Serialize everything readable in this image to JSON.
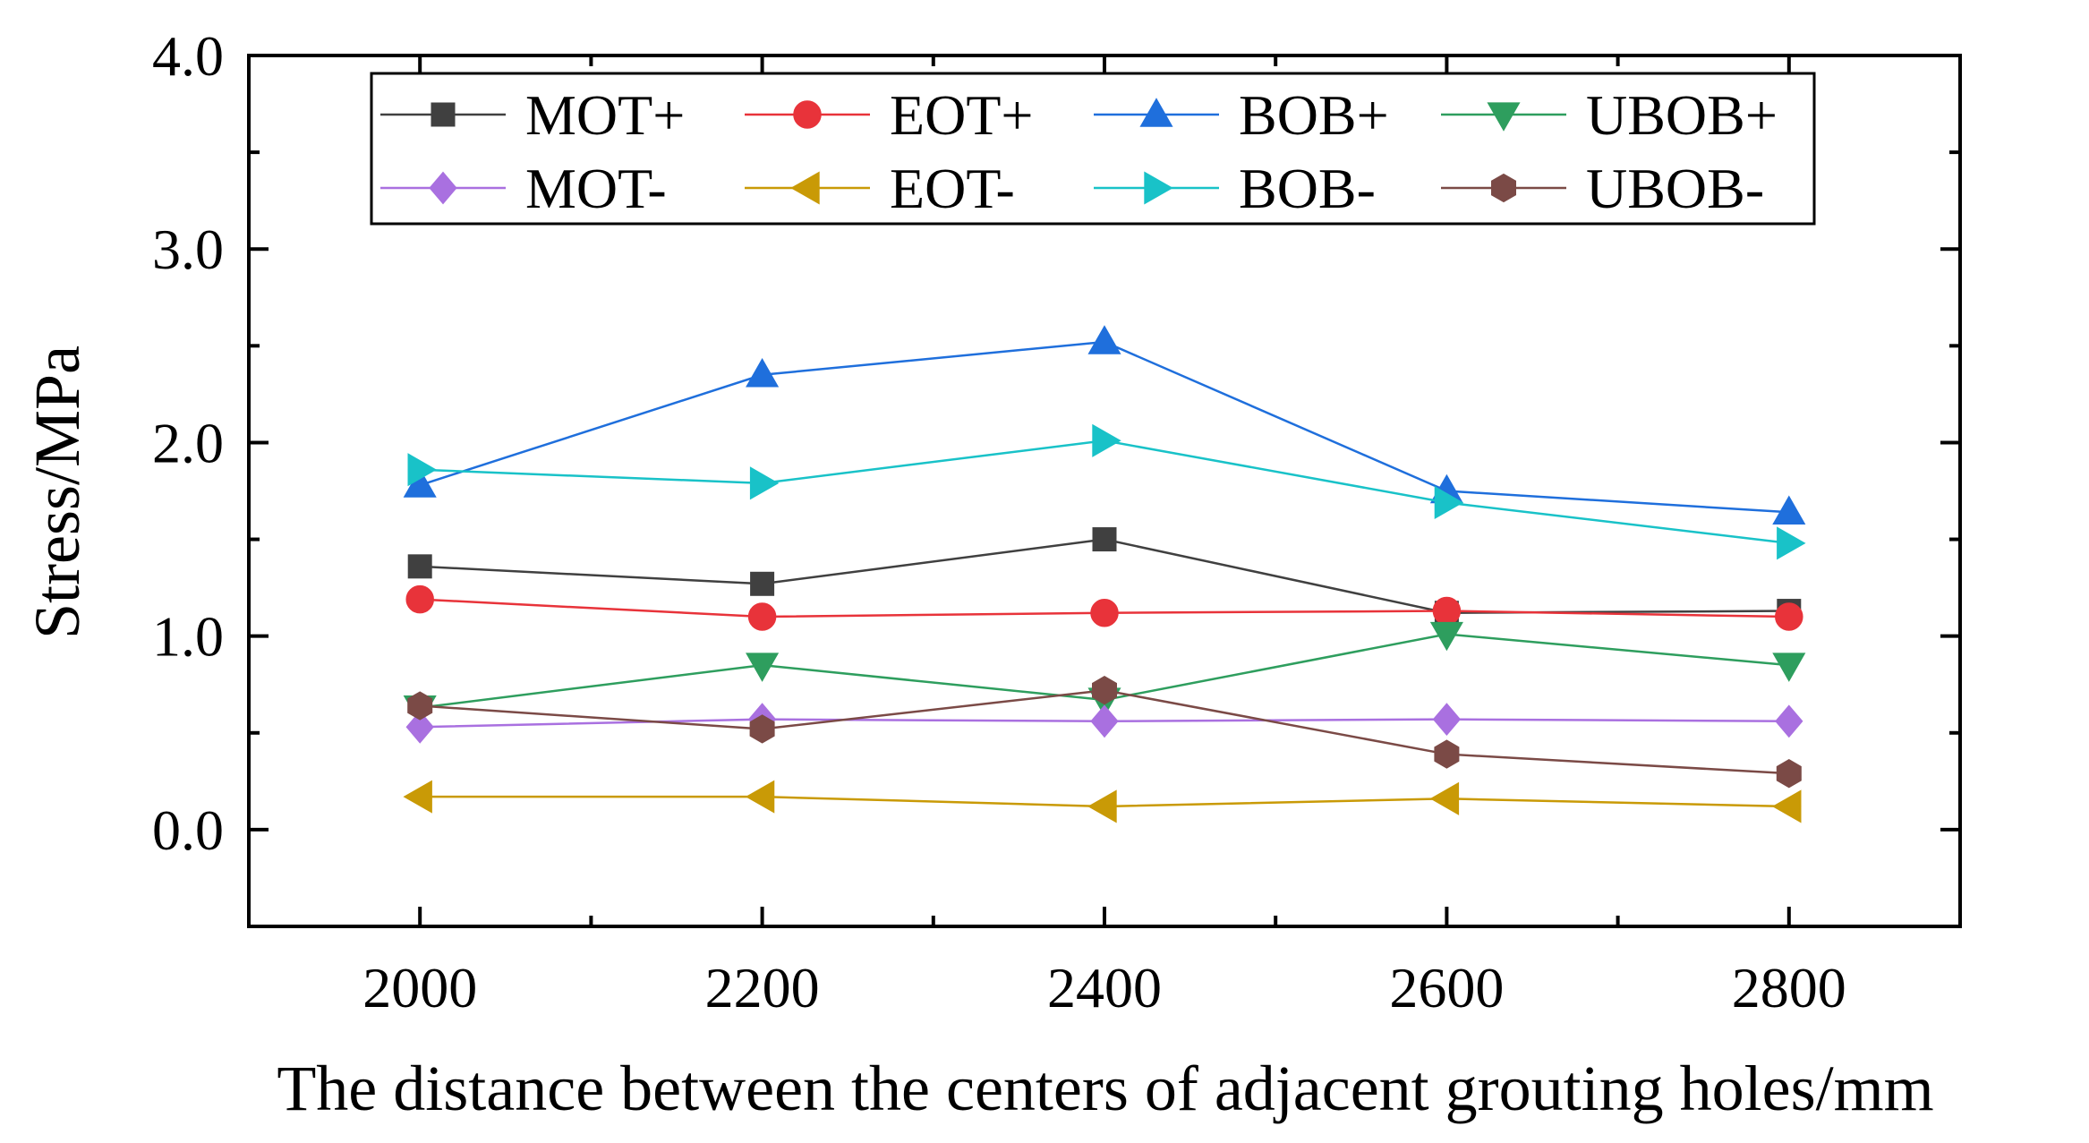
{
  "chart_data": {
    "type": "line",
    "title": "",
    "xlabel": "The distance between the centers of adjacent grouting holes/mm",
    "ylabel": "Stress/MPa",
    "x": [
      2000,
      2200,
      2400,
      2600,
      2800
    ],
    "x_tick_labels": [
      "2000",
      "2200",
      "2400",
      "2600",
      "2800"
    ],
    "xlim": [
      1900,
      2900
    ],
    "ylim": [
      -0.5,
      4.0
    ],
    "y_ticks": [
      0.0,
      1.0,
      2.0,
      3.0,
      4.0
    ],
    "y_tick_labels": [
      "0.0",
      "1.0",
      "2.0",
      "3.0",
      "4.0"
    ],
    "grid": false,
    "legend_position": "top",
    "series": [
      {
        "name": "MOT+",
        "color": "#404040",
        "marker": "square",
        "values": [
          1.36,
          1.27,
          1.5,
          1.12,
          1.13
        ]
      },
      {
        "name": "EOT+",
        "color": "#e8333a",
        "marker": "circle",
        "values": [
          1.19,
          1.1,
          1.12,
          1.13,
          1.1
        ]
      },
      {
        "name": "BOB+",
        "color": "#1f6fdc",
        "marker": "triangle-up",
        "values": [
          1.78,
          2.35,
          2.52,
          1.75,
          1.64
        ]
      },
      {
        "name": "UBOB+",
        "color": "#2e9e5e",
        "marker": "triangle-down",
        "values": [
          0.63,
          0.85,
          0.67,
          1.01,
          0.85
        ]
      },
      {
        "name": "MOT-",
        "color": "#a970e0",
        "marker": "diamond",
        "values": [
          0.53,
          0.57,
          0.56,
          0.57,
          0.56
        ]
      },
      {
        "name": "EOT-",
        "color": "#c99a06",
        "marker": "triangle-left",
        "values": [
          0.17,
          0.17,
          0.12,
          0.16,
          0.12
        ]
      },
      {
        "name": "BOB-",
        "color": "#19c2c8",
        "marker": "triangle-right",
        "values": [
          1.86,
          1.79,
          2.01,
          1.69,
          1.48
        ]
      },
      {
        "name": "UBOB-",
        "color": "#7b4a46",
        "marker": "hexagon",
        "values": [
          0.64,
          0.52,
          0.72,
          0.39,
          0.29
        ]
      }
    ]
  }
}
